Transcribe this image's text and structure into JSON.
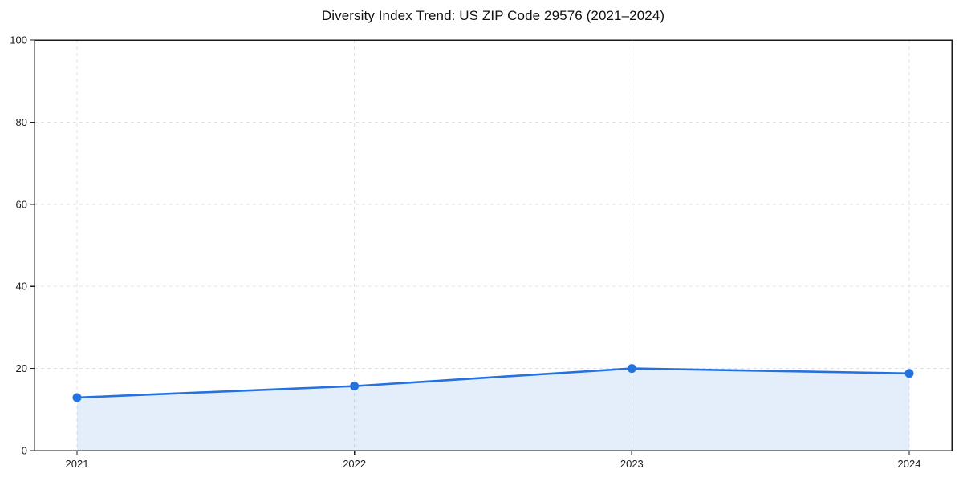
{
  "chart_data": {
    "type": "area",
    "title": "Diversity Index Trend: US ZIP Code 29576 (2021–2024)",
    "categories": [
      "2021",
      "2022",
      "2023",
      "2024"
    ],
    "values": [
      12.9,
      15.7,
      20.0,
      18.8
    ],
    "xlabel": "",
    "ylabel": "",
    "ylim": [
      0,
      100
    ],
    "yticks": [
      0,
      20,
      40,
      60,
      80,
      100
    ],
    "grid": true,
    "grid_style": "dashed",
    "legend_position": "none",
    "line_color": "#2472e0",
    "marker_shape": "circle",
    "fill_opacity": 0.12,
    "grid_color": "#e1e1e1",
    "axis_color": "#1a1a1a",
    "tick_text_color": "#1c1c1c"
  }
}
